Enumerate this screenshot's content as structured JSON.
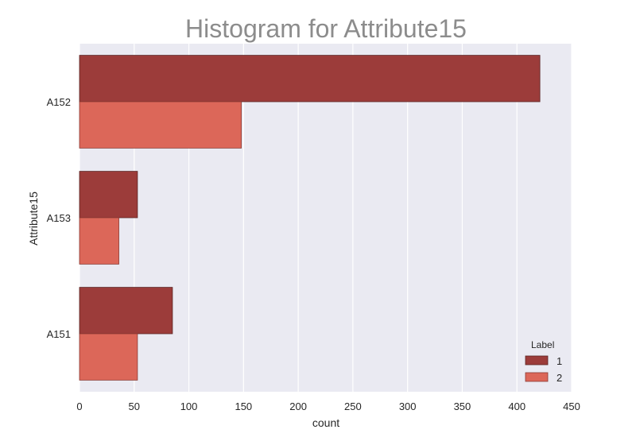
{
  "chart_data": {
    "type": "bar",
    "orientation": "horizontal",
    "title": "Histogram for Attribute15",
    "xlabel": "count",
    "ylabel": "Attribute15",
    "xlim": [
      0,
      450
    ],
    "x_ticks": [
      0,
      50,
      100,
      150,
      200,
      250,
      300,
      350,
      400,
      450
    ],
    "grid": true,
    "categories": [
      "A152",
      "A153",
      "A151"
    ],
    "series": [
      {
        "name": "1",
        "values": [
          421,
          53,
          85
        ],
        "color": "#9c3c3a"
      },
      {
        "name": "2",
        "values": [
          148,
          36,
          53
        ],
        "color": "#dc6759"
      }
    ],
    "legend": {
      "title": "Label",
      "placement": "bottom-right"
    },
    "colors": {
      "plot_background": "#eaeaf2",
      "grid": "#ffffff",
      "title": "#8c8c8c",
      "text": "#262626"
    }
  }
}
